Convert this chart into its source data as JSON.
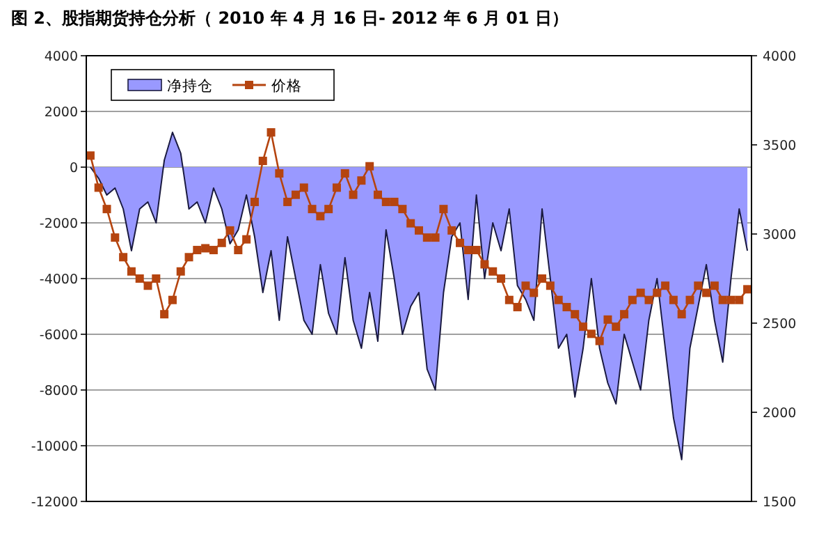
{
  "chart_data": {
    "type": "area",
    "title": "图 2、股指期货持仓分析（ 2010 年 4 月 16 日- 2012 年 6 月 01 日）",
    "categories": [
      null,
      null,
      null,
      null,
      null,
      null,
      null,
      null,
      null,
      null,
      null,
      null,
      null,
      null,
      null,
      null,
      null,
      null,
      null,
      null,
      null,
      null,
      null,
      null,
      null,
      null,
      null,
      null,
      null,
      null,
      null,
      null,
      null,
      null,
      null,
      null,
      null,
      null,
      null,
      null,
      null,
      null,
      null,
      null,
      null,
      null,
      null,
      null,
      null,
      null,
      null,
      null,
      null,
      null,
      null,
      null,
      null,
      null,
      null,
      null,
      null,
      null,
      null,
      null,
      null,
      null,
      null,
      null,
      null,
      null,
      null,
      null,
      null,
      null,
      null,
      null,
      null,
      null,
      null,
      null,
      null
    ],
    "series": [
      {
        "name": "净持仓",
        "color": "#9999ff",
        "values": [
          0,
          -400,
          -1000,
          -750,
          -1500,
          -3000,
          -1500,
          -1250,
          -2000,
          250,
          1250,
          500,
          -1500,
          -1250,
          -2000,
          -750,
          -1500,
          -2750,
          -2250,
          -1000,
          -2500,
          -4500,
          -3000,
          -5500,
          -2500,
          -4000,
          -5500,
          -6000,
          -3500,
          -5250,
          -6000,
          -3250,
          -5500,
          -6500,
          -4500,
          -6250,
          -2250,
          -4000,
          -6000,
          -5000,
          -4500,
          -7250,
          -8000,
          -4500,
          -2500,
          -2000,
          -4750,
          -1000,
          -4000,
          -2000,
          -3000,
          -1500,
          -4250,
          -4750,
          -5500,
          -1500,
          -4000,
          -6500,
          -6000,
          -8250,
          -6500,
          -4000,
          -6500,
          -7750,
          -8500,
          -6000,
          -7000,
          -8000,
          -5500,
          -4000,
          -6500,
          -9000,
          -10500,
          -6500,
          -5000,
          -3500,
          -5500,
          -7000,
          -4000,
          -1500,
          -3000
        ]
      },
      {
        "name": "价格",
        "type": "line",
        "axis": "y2",
        "color": "#b5440f",
        "marker": "square",
        "values": [
          3440,
          3260,
          3140,
          2980,
          2870,
          2790,
          2750,
          2710,
          2750,
          2550,
          2630,
          2790,
          2870,
          2910,
          2920,
          2910,
          2950,
          3020,
          2910,
          2970,
          3180,
          3410,
          3570,
          3340,
          3180,
          3220,
          3260,
          3140,
          3100,
          3140,
          3260,
          3340,
          3220,
          3300,
          3380,
          3220,
          3180,
          3180,
          3140,
          3060,
          3020,
          2980,
          2980,
          3140,
          3020,
          2950,
          2910,
          2910,
          2830,
          2790,
          2750,
          2630,
          2590,
          2710,
          2670,
          2750,
          2710,
          2630,
          2590,
          2550,
          2480,
          2440,
          2400,
          2520,
          2480,
          2550,
          2630,
          2670,
          2630,
          2670,
          2710,
          2630,
          2550,
          2630,
          2710,
          2670,
          2710,
          2630,
          2630,
          2630,
          2690
        ]
      }
    ],
    "ylim": [
      -12000,
      4000
    ],
    "yticks": [
      -12000,
      -10000,
      -8000,
      -6000,
      -4000,
      -2000,
      0,
      2000,
      4000
    ],
    "y2lim": [
      1500,
      4000
    ],
    "y2ticks": [
      1500,
      2000,
      2500,
      3000,
      3500,
      4000
    ],
    "grid": "y",
    "legend": "top left"
  }
}
